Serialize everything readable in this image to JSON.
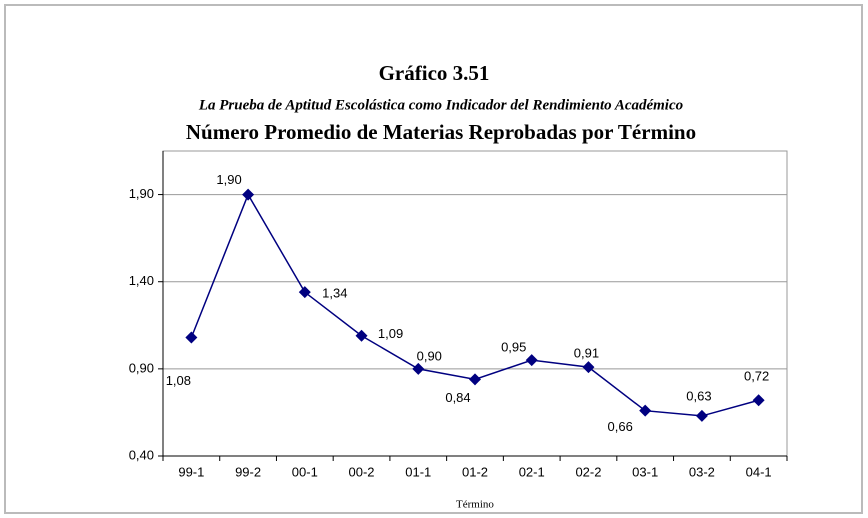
{
  "chart_data": {
    "type": "line",
    "title": "Gráfico 3.51",
    "subtitle": "La Prueba de Aptitud Escolástica como Indicador del Rendimiento Académico",
    "chart_title": "Número Promedio de Materias Reprobadas por Término",
    "x_label": "Término",
    "categories": [
      "99-1",
      "99-2",
      "00-1",
      "00-2",
      "01-1",
      "01-2",
      "02-1",
      "02-2",
      "03-1",
      "03-2",
      "04-1"
    ],
    "values": [
      1.08,
      1.9,
      1.34,
      1.09,
      0.9,
      0.84,
      0.95,
      0.91,
      0.66,
      0.63,
      0.72
    ],
    "value_labels": [
      "1,08",
      "1,90",
      "1,34",
      "1,09",
      "0,90",
      "0,84",
      "0,95",
      "0,91",
      "0,66",
      "0,63",
      "0,72"
    ],
    "color": "#000080",
    "ylim": [
      0.4,
      2.15
    ],
    "yticks": [
      {
        "value": 0.4,
        "label": "0,40"
      },
      {
        "value": 0.9,
        "label": "0,90"
      },
      {
        "value": 1.4,
        "label": "1,40"
      },
      {
        "value": 1.9,
        "label": "1,90"
      }
    ],
    "grid": true
  }
}
